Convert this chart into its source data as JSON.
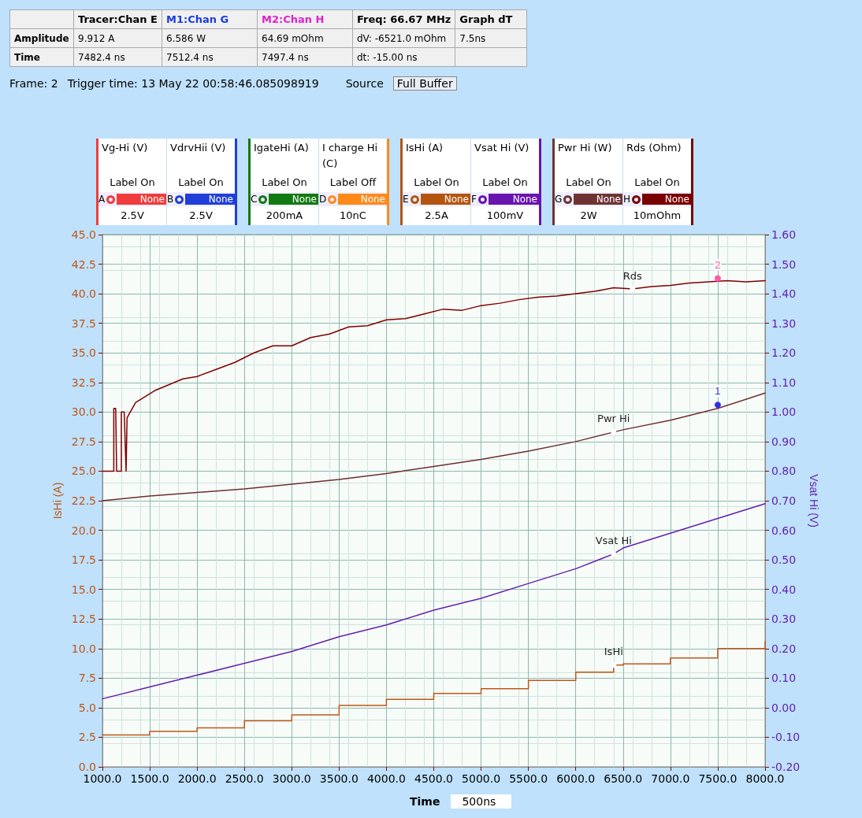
{
  "chart_data": {
    "type": "line",
    "xlabel": "Time",
    "ylabel": "IsHi (A)",
    "y2label": "Vsat Hi (V)",
    "xlim": [
      1000,
      8000
    ],
    "xticks": [
      {
        "value": 1000,
        "label": "1000.0"
      },
      {
        "value": 1500,
        "label": "1500.0"
      },
      {
        "value": 2000,
        "label": "2000.0"
      },
      {
        "value": 2500,
        "label": "2500.0"
      },
      {
        "value": 3000,
        "label": "3000.0"
      },
      {
        "value": 3500,
        "label": "3500.0"
      },
      {
        "value": 4000,
        "label": "4000.0"
      },
      {
        "value": 4500,
        "label": "4500.0"
      },
      {
        "value": 5000,
        "label": "5000.0"
      },
      {
        "value": 5500,
        "label": "5500.0"
      },
      {
        "value": 6000,
        "label": "6000.0"
      },
      {
        "value": 6500,
        "label": "6500.0"
      },
      {
        "value": 7000,
        "label": "7000.0"
      },
      {
        "value": 7500,
        "label": "7500.0"
      },
      {
        "value": 8000,
        "label": "8000.0"
      }
    ],
    "ylim": [
      0,
      45
    ],
    "yticks": [
      {
        "value": 0,
        "label": "0.0"
      },
      {
        "value": 2.5,
        "label": "2.5"
      },
      {
        "value": 5,
        "label": "5.0"
      },
      {
        "value": 7.5,
        "label": "7.5"
      },
      {
        "value": 10,
        "label": "10.0"
      },
      {
        "value": 12.5,
        "label": "12.5"
      },
      {
        "value": 15,
        "label": "15.0"
      },
      {
        "value": 17.5,
        "label": "17.5"
      },
      {
        "value": 20,
        "label": "20.0"
      },
      {
        "value": 22.5,
        "label": "22.5"
      },
      {
        "value": 25,
        "label": "25.0"
      },
      {
        "value": 27.5,
        "label": "27.5"
      },
      {
        "value": 30,
        "label": "30.0"
      },
      {
        "value": 32.5,
        "label": "32.5"
      },
      {
        "value": 35,
        "label": "35.0"
      },
      {
        "value": 37.5,
        "label": "37.5"
      },
      {
        "value": 40,
        "label": "40.0"
      },
      {
        "value": 42.5,
        "label": "42.5"
      },
      {
        "value": 45,
        "label": "45.0"
      }
    ],
    "y2lim": [
      -0.2,
      1.6
    ],
    "y2ticks": [
      {
        "value": -0.2,
        "label": "-0.20"
      },
      {
        "value": -0.1,
        "label": "-0.10"
      },
      {
        "value": 0,
        "label": "0.00"
      },
      {
        "value": 0.1,
        "label": "0.10"
      },
      {
        "value": 0.2,
        "label": "0.20"
      },
      {
        "value": 0.3,
        "label": "0.30"
      },
      {
        "value": 0.4,
        "label": "0.40"
      },
      {
        "value": 0.5,
        "label": "0.50"
      },
      {
        "value": 0.6,
        "label": "0.60"
      },
      {
        "value": 0.7,
        "label": "0.70"
      },
      {
        "value": 0.8,
        "label": "0.80"
      },
      {
        "value": 0.9,
        "label": "0.90"
      },
      {
        "value": 1.0,
        "label": "1.00"
      },
      {
        "value": 1.1,
        "label": "1.10"
      },
      {
        "value": 1.2,
        "label": "1.20"
      },
      {
        "value": 1.3,
        "label": "1.30"
      },
      {
        "value": 1.4,
        "label": "1.40"
      },
      {
        "value": 1.5,
        "label": "1.50"
      },
      {
        "value": 1.6,
        "label": "1.60"
      }
    ],
    "grid": true,
    "legend": false,
    "marker": "none",
    "line_style": "solid",
    "series": [
      {
        "name": "Rds",
        "color": "#800000",
        "x": [
          1000,
          1120,
          1120,
          1140,
          1150,
          1160,
          1200,
          1200,
          1230,
          1250,
          1260,
          1280,
          1350,
          1450,
          1550,
          1700,
          1850,
          2000,
          2200,
          2400,
          2600,
          2800,
          3000,
          3200,
          3400,
          3600,
          3800,
          4000,
          4200,
          4400,
          4600,
          4800,
          5000,
          5200,
          5400,
          5600,
          5800,
          6000,
          6200,
          6400,
          6600,
          6800,
          7000,
          7200,
          7400,
          7600,
          7800,
          8000
        ],
        "values": [
          25,
          25,
          30.3,
          30.3,
          25,
          25,
          25,
          30,
          30,
          25,
          29.5,
          29.8,
          30.8,
          31.3,
          31.8,
          32.3,
          32.8,
          33.0,
          33.6,
          34.2,
          35.0,
          35.6,
          35.6,
          36.3,
          36.6,
          37.2,
          37.3,
          37.8,
          37.9,
          38.3,
          38.7,
          38.6,
          39.0,
          39.2,
          39.5,
          39.7,
          39.8,
          40.0,
          40.2,
          40.5,
          40.4,
          40.6,
          40.7,
          40.9,
          41.0,
          41.1,
          41.0,
          41.1
        ]
      },
      {
        "name": "Pwr Hi",
        "color": "#6e2f2f",
        "x": [
          1000,
          1500,
          2000,
          2500,
          3000,
          3500,
          4000,
          4500,
          5000,
          5500,
          6000,
          6400,
          6500,
          7000,
          7500,
          8000
        ],
        "values": [
          22.5,
          22.9,
          23.2,
          23.5,
          23.9,
          24.3,
          24.8,
          25.4,
          26.0,
          26.7,
          27.5,
          28.3,
          28.5,
          29.3,
          30.3,
          31.6
        ]
      },
      {
        "name": "Vsat Hi",
        "color": "#6420b0",
        "axis": "y2",
        "x": [
          1000,
          1500,
          2000,
          2500,
          3000,
          3500,
          4000,
          4500,
          5000,
          5500,
          6000,
          6400,
          6500,
          7000,
          7500,
          8000
        ],
        "values": [
          0.03,
          0.07,
          0.11,
          0.15,
          0.19,
          0.24,
          0.28,
          0.33,
          0.37,
          0.42,
          0.47,
          0.52,
          0.54,
          0.59,
          0.64,
          0.69
        ]
      },
      {
        "name": "IsHi",
        "color": "#c0571a",
        "type": "step",
        "x": [
          1000,
          1500,
          2000,
          2500,
          3000,
          3500,
          4000,
          4500,
          5000,
          5500,
          6000,
          6400,
          6500,
          7000,
          7500,
          8000
        ],
        "values": [
          2.7,
          3.0,
          3.3,
          3.9,
          4.4,
          5.2,
          5.7,
          6.2,
          6.6,
          7.3,
          8.0,
          8.6,
          8.7,
          9.2,
          10.0,
          10.6
        ]
      }
    ],
    "annotations": [
      "Tracer:Chan E",
      "M1:Chan G",
      "M2:Chan H",
      "Freq: 66.67 MHz",
      "Graph dT",
      "Amplitude",
      "9.912 A",
      "6.586 W",
      "64.69 mOhm",
      "dV: -6521.0 mOhm",
      "7.5ns",
      "Time",
      "7482.4 ns",
      "7512.4 ns",
      "7497.4 ns",
      "dt:  -15.00 ns",
      "Frame: 2",
      "Trigger time: 13 May 22 00:58:46.085098919",
      "Source",
      "Full Buffer",
      "Vg-Hi (V)",
      "Label On",
      "A",
      "None",
      "2.5V",
      "VdrvHii (V)",
      "Label On",
      "B",
      "None",
      "2.5V",
      "IgateHi (A)",
      "Label On",
      "C",
      "None",
      "200mA",
      "I charge Hi (C)",
      "Label Off",
      "D",
      "None",
      "10nC",
      "IsHi (A)",
      "Label On",
      "E",
      "None",
      "2.5A",
      "Vsat Hi (V)",
      "Label On",
      "F",
      "None",
      "100mV",
      "Pwr Hi (W)",
      "Label On",
      "G",
      "None",
      "2W",
      "Rds (Ohm)",
      "Label On",
      "H",
      "None",
      "10mOhm",
      "500ns",
      {
        "text": "1",
        "x": 7500,
        "y": 30.6
      },
      {
        "text": "2",
        "x": 7500,
        "y": 41.3
      }
    ]
  }
}
